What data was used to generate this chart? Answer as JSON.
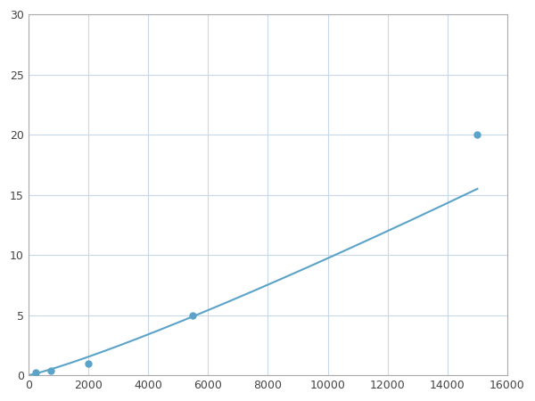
{
  "x_data": [
    250,
    750,
    2000,
    5500,
    15000
  ],
  "y_data": [
    0.2,
    0.4,
    1.0,
    5.0,
    20.0
  ],
  "line_color": "#5ba3c9",
  "marker_color": "#5ba3c9",
  "marker_size": 5,
  "line_width": 1.5,
  "xlim": [
    0,
    16000
  ],
  "ylim": [
    0,
    30
  ],
  "xticks": [
    0,
    2000,
    4000,
    6000,
    8000,
    10000,
    12000,
    14000,
    16000
  ],
  "yticks": [
    0,
    5,
    10,
    15,
    20,
    25,
    30
  ],
  "grid_color": "#c8d8e8",
  "background_color": "#ffffff",
  "spine_color": "#aaaaaa",
  "figsize": [
    6.0,
    4.5
  ],
  "dpi": 100
}
